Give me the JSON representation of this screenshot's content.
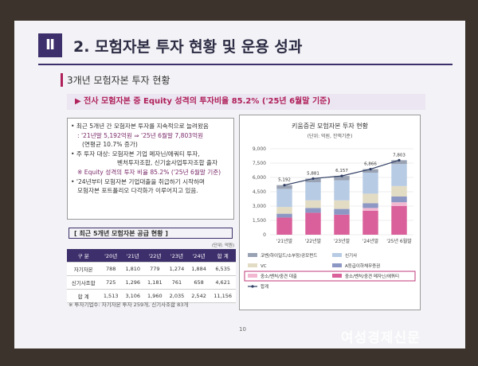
{
  "header": {
    "number": "Ⅱ",
    "title": "2. 모험자본 투자 현황 및 운용 성과"
  },
  "section": "3개년 모험자본 투자 현황",
  "highlight": "▶ 전사 모험자본 중 Equity 성격의 투자비율 85.2% ('25년 6월말 기준)",
  "bullets": [
    "• 최근 5개년 간 모험자본 투자를 지속적으로 늘려왔음",
    ": '21년말 5,192억원 ⇒ '25년 6월말 7,803억원",
    "(연평균 10.7% 증가)",
    "• 주 투자 대상: 모험자본 기업 메자닌/에쿼티 투자,",
    "벤처투자조합, 신기술사업투자조합 출자",
    "※ Equity 성격의 투자 비율 85.2% ('25년 6월말 기준)",
    "• '24년부터 모험자본 기업대출을 취급하기 시작하며",
    "모험자본 포트폴리오 다각화가 이루어지고 있음."
  ],
  "table": {
    "title": "[ 최근 5개년 모험자본 공급 현황 ]",
    "unit": "(단위: 억원)",
    "header": [
      "구 분",
      "'20년",
      "'21년",
      "'22년",
      "'23년",
      "'24년",
      "합 계"
    ],
    "rows": [
      [
        "자기자본",
        "788",
        "1,810",
        "779",
        "1,274",
        "1,884",
        "6,535"
      ],
      [
        "신기사조합",
        "725",
        "1,296",
        "1,181",
        "761",
        "658",
        "4,621"
      ],
      [
        "합 계",
        "1,513",
        "3,106",
        "1,960",
        "2,035",
        "2,542",
        "11,156"
      ]
    ],
    "footnote": "※ 투자기업수: 자기자본 투자 259개, 신기사조합 83개"
  },
  "chart_data": {
    "type": "bar",
    "stacked": true,
    "title": "키움증권 모험자본 투자 현황",
    "subtitle": "(단위: 억원, 잔액기준)",
    "categories": [
      "'21년말",
      "'22년말",
      "'23년말",
      "'24년말",
      "'25년 6월말"
    ],
    "ylim": [
      0,
      9000
    ],
    "yticks": [
      0,
      {
        "value": 1500,
        "label": "1,500"
      },
      {
        "value": 3000,
        "label": "3,000"
      },
      {
        "value": 4500,
        "label": "4,500"
      },
      {
        "value": 6000,
        "label": "6,000"
      },
      {
        "value": 7500,
        "label": "7,500"
      },
      {
        "value": 9000,
        "label": "9,000"
      }
    ],
    "grid": true,
    "series": [
      {
        "name": "중소/벤처/중견 메자닌/에쿼티",
        "color": "#d9609a",
        "values": [
          1800,
          2300,
          2100,
          2500,
          3000
        ]
      },
      {
        "name": "중소/벤처/중견 대출",
        "color": "#f2b8d2",
        "values": [
          0,
          0,
          0,
          300,
          400
        ]
      },
      {
        "name": "A등급이하채무증권",
        "color": "#8c97c4",
        "values": [
          400,
          500,
          600,
          500,
          600
        ]
      },
      {
        "name": "VC",
        "color": "#e3dcc4",
        "values": [
          700,
          800,
          900,
          1000,
          1100
        ]
      },
      {
        "name": "신기사",
        "color": "#b7cbe4",
        "values": [
          1900,
          1900,
          2100,
          2200,
          2300
        ]
      },
      {
        "name": "코벤/하이일드/소부장/공모펀드",
        "color": "#9aa3b3",
        "values": [
          392,
          381,
          457,
          366,
          403
        ]
      }
    ],
    "line": {
      "name": "합계",
      "color": "#2f3d63",
      "values": [
        5192,
        5881,
        6157,
        6866,
        7803
      ],
      "value_labels": [
        "5,192",
        "5,881",
        "6,157",
        "6,866",
        "7,803"
      ]
    }
  },
  "page_number": "10",
  "watermark": "여성경제신문"
}
